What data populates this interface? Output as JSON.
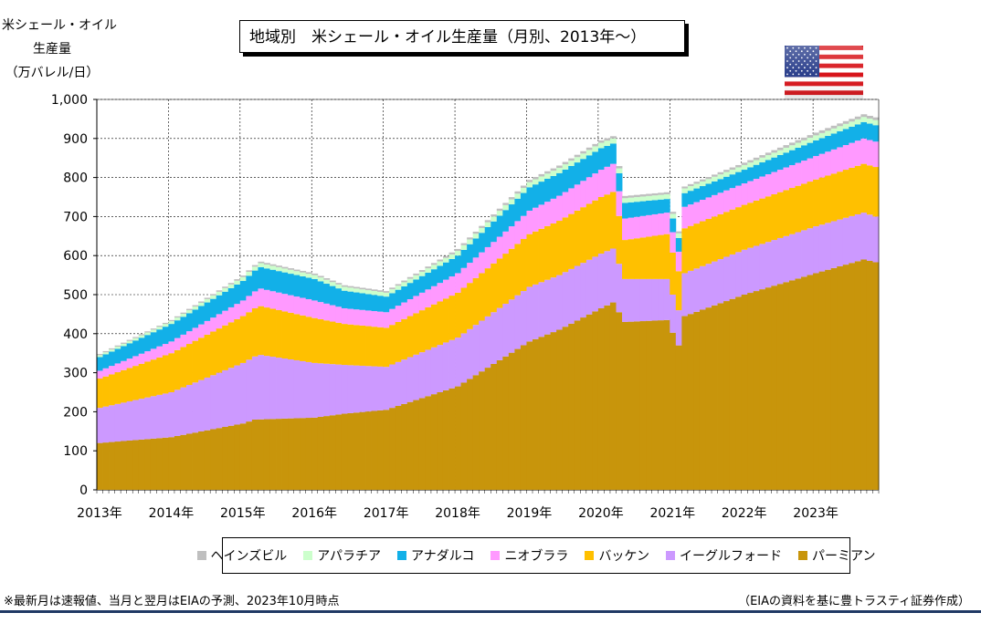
{
  "chart_data": {
    "type": "area",
    "title": "地域別　米シェール・オイル生産量（月別、2013年～）",
    "ylabel_lines": [
      "米シェール・オイル",
      "生産量",
      "（万バレル/日）"
    ],
    "ylim": [
      0,
      1000
    ],
    "yticks": [
      "0",
      "100",
      "200",
      "300",
      "400",
      "500",
      "600",
      "700",
      "800",
      "900",
      "1,000"
    ],
    "grid": true,
    "legend_position": "bottom",
    "x_start": "2013-01",
    "x_end": "2023-11",
    "xtick_labels": [
      "2013年",
      "2014年",
      "2015年",
      "2016年",
      "2017年",
      "2018年",
      "2019年",
      "2020年",
      "2021年",
      "2022年",
      "2023年"
    ],
    "series_order_bottom_to_top": [
      "パーミアン",
      "イーグルフォード",
      "バッケン",
      "ニオブララ",
      "アナダルコ",
      "アパラチア",
      "ヘインズビル"
    ],
    "series": [
      {
        "name": "パーミアン",
        "color": "#c8950b",
        "points": [
          [
            "2013-01",
            120
          ],
          [
            "2014-01",
            135
          ],
          [
            "2015-01",
            170
          ],
          [
            "2015-03",
            180
          ],
          [
            "2016-01",
            185
          ],
          [
            "2016-06",
            195
          ],
          [
            "2017-01",
            205
          ],
          [
            "2018-01",
            265
          ],
          [
            "2019-01",
            380
          ],
          [
            "2019-06",
            410
          ],
          [
            "2020-01",
            465
          ],
          [
            "2020-03",
            480
          ],
          [
            "2020-05",
            430
          ],
          [
            "2020-12",
            435
          ],
          [
            "2021-02",
            370
          ],
          [
            "2021-03",
            445
          ],
          [
            "2022-01",
            500
          ],
          [
            "2023-01",
            555
          ],
          [
            "2023-09",
            590
          ],
          [
            "2023-11",
            583
          ]
        ]
      },
      {
        "name": "イーグルフォード",
        "color": "#cc99ff",
        "points": [
          [
            "2013-01",
            90
          ],
          [
            "2014-01",
            115
          ],
          [
            "2015-01",
            155
          ],
          [
            "2015-04",
            165
          ],
          [
            "2016-01",
            140
          ],
          [
            "2016-06",
            125
          ],
          [
            "2017-01",
            110
          ],
          [
            "2018-01",
            125
          ],
          [
            "2019-01",
            140
          ],
          [
            "2020-01",
            140
          ],
          [
            "2020-03",
            138
          ],
          [
            "2020-05",
            110
          ],
          [
            "2020-12",
            105
          ],
          [
            "2021-02",
            90
          ],
          [
            "2021-03",
            110
          ],
          [
            "2022-01",
            115
          ],
          [
            "2023-01",
            120
          ],
          [
            "2023-09",
            120
          ],
          [
            "2023-11",
            117
          ]
        ]
      },
      {
        "name": "バッケン",
        "color": "#ffc000",
        "points": [
          [
            "2013-01",
            75
          ],
          [
            "2014-01",
            100
          ],
          [
            "2015-01",
            120
          ],
          [
            "2015-04",
            125
          ],
          [
            "2016-01",
            115
          ],
          [
            "2016-06",
            105
          ],
          [
            "2017-01",
            100
          ],
          [
            "2018-01",
            115
          ],
          [
            "2019-01",
            135
          ],
          [
            "2020-01",
            145
          ],
          [
            "2020-03",
            145
          ],
          [
            "2020-05",
            100
          ],
          [
            "2020-12",
            115
          ],
          [
            "2021-02",
            100
          ],
          [
            "2021-03",
            115
          ],
          [
            "2022-01",
            115
          ],
          [
            "2023-01",
            120
          ],
          [
            "2023-09",
            125
          ],
          [
            "2023-11",
            127
          ]
        ]
      },
      {
        "name": "ニオブララ",
        "color": "#ff99ff",
        "points": [
          [
            "2013-01",
            20
          ],
          [
            "2014-01",
            30
          ],
          [
            "2015-01",
            40
          ],
          [
            "2015-04",
            45
          ],
          [
            "2016-01",
            45
          ],
          [
            "2016-06",
            40
          ],
          [
            "2017-01",
            40
          ],
          [
            "2018-01",
            50
          ],
          [
            "2019-01",
            60
          ],
          [
            "2020-01",
            70
          ],
          [
            "2020-03",
            72
          ],
          [
            "2020-05",
            55
          ],
          [
            "2020-12",
            55
          ],
          [
            "2021-02",
            50
          ],
          [
            "2021-03",
            55
          ],
          [
            "2022-01",
            55
          ],
          [
            "2023-01",
            60
          ],
          [
            "2023-09",
            65
          ],
          [
            "2023-11",
            65
          ]
        ]
      },
      {
        "name": "アナダルコ",
        "color": "#12b0e8",
        "points": [
          [
            "2013-01",
            35
          ],
          [
            "2014-01",
            45
          ],
          [
            "2015-01",
            50
          ],
          [
            "2015-04",
            55
          ],
          [
            "2016-01",
            55
          ],
          [
            "2016-06",
            45
          ],
          [
            "2017-01",
            40
          ],
          [
            "2018-01",
            45
          ],
          [
            "2019-01",
            60
          ],
          [
            "2020-01",
            55
          ],
          [
            "2020-03",
            52
          ],
          [
            "2020-05",
            40
          ],
          [
            "2020-12",
            35
          ],
          [
            "2021-02",
            35
          ],
          [
            "2021-03",
            35
          ],
          [
            "2022-01",
            35
          ],
          [
            "2023-01",
            40
          ],
          [
            "2023-09",
            42
          ],
          [
            "2023-11",
            42
          ]
        ]
      },
      {
        "name": "アパラチア",
        "color": "#ccffcc",
        "points": [
          [
            "2013-01",
            5
          ],
          [
            "2014-01",
            7
          ],
          [
            "2015-01",
            10
          ],
          [
            "2016-01",
            10
          ],
          [
            "2017-01",
            10
          ],
          [
            "2018-01",
            12
          ],
          [
            "2019-01",
            13
          ],
          [
            "2020-01",
            14
          ],
          [
            "2020-05",
            12
          ],
          [
            "2021-03",
            12
          ],
          [
            "2022-01",
            12
          ],
          [
            "2023-01",
            13
          ],
          [
            "2023-11",
            13
          ]
        ]
      },
      {
        "name": "ヘインズビル",
        "color": "#bfbfbf",
        "points": [
          [
            "2013-01",
            3
          ],
          [
            "2014-01",
            3
          ],
          [
            "2015-01",
            4
          ],
          [
            "2016-01",
            4
          ],
          [
            "2017-01",
            4
          ],
          [
            "2018-01",
            5
          ],
          [
            "2019-01",
            6
          ],
          [
            "2020-01",
            6
          ],
          [
            "2021-03",
            5
          ],
          [
            "2022-01",
            6
          ],
          [
            "2023-01",
            7
          ],
          [
            "2023-11",
            7
          ]
        ]
      }
    ]
  },
  "flag": {
    "name": "us-flag-icon",
    "stripe_red": "#d7141a",
    "canton_blue": "#2b3f8c"
  },
  "footnote": "※最新月は速報値、当月と翌月はEIAの予測、2023年10月時点",
  "source": "（EIAの資料を基に豊トラスティ証券作成）"
}
